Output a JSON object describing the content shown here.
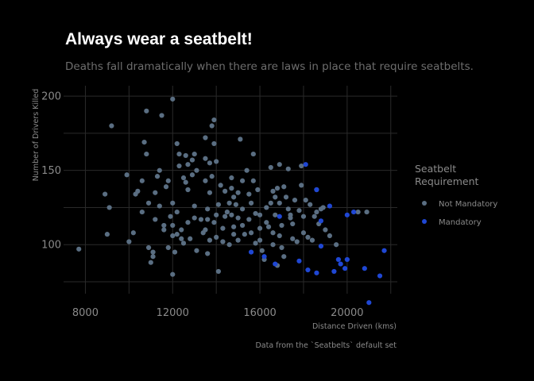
{
  "colors": {
    "background": "#000000",
    "not_mandatory": "#5a6e82",
    "mandatory": "#1f47d4",
    "grid": "#2a2a2a"
  },
  "chart_data": {
    "type": "scatter",
    "title": "Always wear a seatbelt!",
    "subtitle": "Deaths fall dramatically when there are laws in place that require seatbelts.",
    "xlabel": "Distance Driven (kms)",
    "ylabel": "Number of Drivers Killed",
    "caption": "Data from the `Seatbelts` default set",
    "xlim": [
      7000,
      22300
    ],
    "ylim": [
      67,
      207
    ],
    "x_ticks": [
      8000,
      12000,
      16000,
      20000
    ],
    "x_tick_labels": [
      "8000",
      "12000",
      "16000",
      "20000"
    ],
    "y_ticks": [
      100,
      150,
      200
    ],
    "y_tick_labels": [
      "100",
      "150",
      "200"
    ],
    "grid": true,
    "legend": {
      "title": "Seatbelt Requirement",
      "title_lines": [
        "Seatbelt",
        "Requirement"
      ],
      "placement": "right"
    },
    "series": [
      {
        "name": "Not Mandatory",
        "color": "#5a6e82",
        "points": [
          [
            7700,
            97
          ],
          [
            8900,
            134
          ],
          [
            9000,
            107
          ],
          [
            9100,
            125
          ],
          [
            9200,
            180
          ],
          [
            9900,
            147
          ],
          [
            10000,
            102
          ],
          [
            10200,
            108
          ],
          [
            10300,
            134
          ],
          [
            10400,
            136
          ],
          [
            10600,
            143
          ],
          [
            10600,
            122
          ],
          [
            10700,
            169
          ],
          [
            10800,
            190
          ],
          [
            10800,
            161
          ],
          [
            10900,
            128
          ],
          [
            10900,
            98
          ],
          [
            11000,
            88
          ],
          [
            11100,
            95
          ],
          [
            11100,
            92
          ],
          [
            11200,
            117
          ],
          [
            11200,
            135
          ],
          [
            11300,
            146
          ],
          [
            11400,
            150
          ],
          [
            11400,
            126
          ],
          [
            11500,
            187
          ],
          [
            11600,
            113
          ],
          [
            11600,
            110
          ],
          [
            11700,
            139
          ],
          [
            11800,
            143
          ],
          [
            11800,
            98
          ],
          [
            11900,
            119
          ],
          [
            12000,
            128
          ],
          [
            12000,
            113
          ],
          [
            12000,
            198
          ],
          [
            12000,
            80
          ],
          [
            12000,
            106
          ],
          [
            12100,
            95
          ],
          [
            12200,
            168
          ],
          [
            12200,
            122
          ],
          [
            12200,
            107
          ],
          [
            12300,
            161
          ],
          [
            12300,
            153
          ],
          [
            12400,
            110
          ],
          [
            12400,
            104
          ],
          [
            12500,
            145
          ],
          [
            12500,
            101
          ],
          [
            12600,
            160
          ],
          [
            12600,
            142
          ],
          [
            12700,
            154
          ],
          [
            12700,
            137
          ],
          [
            12700,
            115
          ],
          [
            12800,
            104
          ],
          [
            12900,
            157
          ],
          [
            12900,
            147
          ],
          [
            13000,
            161
          ],
          [
            13000,
            126
          ],
          [
            13000,
            118
          ],
          [
            13100,
            150
          ],
          [
            13100,
            96
          ],
          [
            13300,
            117
          ],
          [
            13400,
            108
          ],
          [
            13500,
            172
          ],
          [
            13500,
            158
          ],
          [
            13500,
            143
          ],
          [
            13500,
            110
          ],
          [
            13600,
            124
          ],
          [
            13600,
            94
          ],
          [
            13600,
            117
          ],
          [
            13700,
            155
          ],
          [
            13700,
            135
          ],
          [
            13700,
            103
          ],
          [
            13800,
            180
          ],
          [
            13800,
            146
          ],
          [
            13900,
            184
          ],
          [
            13900,
            168
          ],
          [
            13900,
            115
          ],
          [
            14000,
            156
          ],
          [
            14000,
            120
          ],
          [
            14000,
            105
          ],
          [
            14100,
            82
          ],
          [
            14100,
            127
          ],
          [
            14200,
            140
          ],
          [
            14300,
            111
          ],
          [
            14300,
            102
          ],
          [
            14400,
            136
          ],
          [
            14400,
            119
          ],
          [
            14500,
            122
          ],
          [
            14600,
            128
          ],
          [
            14600,
            100
          ],
          [
            14700,
            145
          ],
          [
            14700,
            138
          ],
          [
            14700,
            120
          ],
          [
            14800,
            132
          ],
          [
            14800,
            112
          ],
          [
            14800,
            107
          ],
          [
            14900,
            127
          ],
          [
            15000,
            135
          ],
          [
            15000,
            118
          ],
          [
            15000,
            103
          ],
          [
            15100,
            171
          ],
          [
            15200,
            143
          ],
          [
            15200,
            124
          ],
          [
            15200,
            113
          ],
          [
            15300,
            107
          ],
          [
            15400,
            150
          ],
          [
            15500,
            134
          ],
          [
            15500,
            117
          ],
          [
            15600,
            128
          ],
          [
            15600,
            108
          ],
          [
            15700,
            161
          ],
          [
            15700,
            143
          ],
          [
            15800,
            121
          ],
          [
            15800,
            101
          ],
          [
            15900,
            137
          ],
          [
            16000,
            120
          ],
          [
            16000,
            111
          ],
          [
            16000,
            103
          ],
          [
            16100,
            96
          ],
          [
            16200,
            90
          ],
          [
            16300,
            125
          ],
          [
            16300,
            115
          ],
          [
            16400,
            112
          ],
          [
            16500,
            152
          ],
          [
            16500,
            128
          ],
          [
            16600,
            136
          ],
          [
            16600,
            108
          ],
          [
            16600,
            100
          ],
          [
            16700,
            132
          ],
          [
            16700,
            120
          ],
          [
            16800,
            138
          ],
          [
            16800,
            86
          ],
          [
            16900,
            154
          ],
          [
            16900,
            128
          ],
          [
            16900,
            106
          ],
          [
            17000,
            113
          ],
          [
            17000,
            98
          ],
          [
            17100,
            139
          ],
          [
            17100,
            92
          ],
          [
            17200,
            132
          ],
          [
            17300,
            151
          ],
          [
            17300,
            124
          ],
          [
            17400,
            118
          ],
          [
            17400,
            120
          ],
          [
            17500,
            114
          ],
          [
            17500,
            104
          ],
          [
            17600,
            130
          ],
          [
            17700,
            102
          ],
          [
            17800,
            123
          ],
          [
            17900,
            153
          ],
          [
            17900,
            140
          ],
          [
            18000,
            119
          ],
          [
            18000,
            108
          ],
          [
            18100,
            130
          ],
          [
            18200,
            105
          ],
          [
            18300,
            127
          ],
          [
            18400,
            103
          ],
          [
            18500,
            119
          ],
          [
            18600,
            137
          ],
          [
            18600,
            122
          ],
          [
            18700,
            114
          ],
          [
            18800,
            124
          ],
          [
            18900,
            125
          ],
          [
            19000,
            110
          ],
          [
            19200,
            106
          ],
          [
            19500,
            100
          ],
          [
            20500,
            122
          ],
          [
            20900,
            122
          ]
        ]
      },
      {
        "name": "Mandatory",
        "color": "#1f47d4",
        "points": [
          [
            15600,
            95
          ],
          [
            16200,
            92
          ],
          [
            16700,
            87
          ],
          [
            16900,
            119
          ],
          [
            17800,
            89
          ],
          [
            18100,
            154
          ],
          [
            18200,
            83
          ],
          [
            18600,
            137
          ],
          [
            18600,
            81
          ],
          [
            18800,
            116
          ],
          [
            18800,
            99
          ],
          [
            19200,
            126
          ],
          [
            19400,
            82
          ],
          [
            19600,
            90
          ],
          [
            19700,
            87
          ],
          [
            19900,
            84
          ],
          [
            20000,
            90
          ],
          [
            20000,
            120
          ],
          [
            20300,
            122
          ],
          [
            20800,
            84
          ],
          [
            21000,
            61
          ],
          [
            21500,
            79
          ],
          [
            21700,
            96
          ]
        ]
      }
    ]
  }
}
